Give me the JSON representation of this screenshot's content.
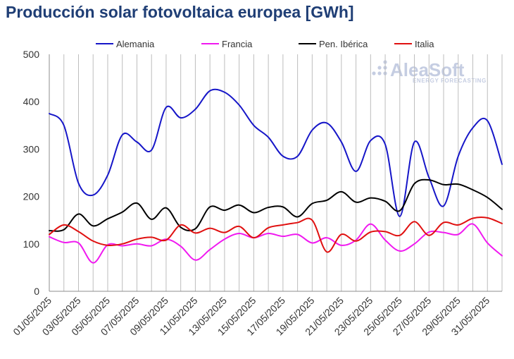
{
  "chart_data": {
    "type": "line",
    "title": "Producción solar fotovoltaica europea [GWh]",
    "xlabel": "",
    "ylabel": "",
    "ylim": [
      0,
      500
    ],
    "yticks": [
      0,
      100,
      200,
      300,
      400,
      500
    ],
    "x_start": "01/05/2025",
    "x": [
      "01/05/2025",
      "02/05/2025",
      "03/05/2025",
      "04/05/2025",
      "05/05/2025",
      "06/05/2025",
      "07/05/2025",
      "08/05/2025",
      "09/05/2025",
      "10/05/2025",
      "11/05/2025",
      "12/05/2025",
      "13/05/2025",
      "14/05/2025",
      "15/05/2025",
      "16/05/2025",
      "17/05/2025",
      "18/05/2025",
      "19/05/2025",
      "20/05/2025",
      "21/05/2025",
      "22/05/2025",
      "23/05/2025",
      "24/05/2025",
      "25/05/2025",
      "26/05/2025",
      "27/05/2025",
      "28/05/2025",
      "29/05/2025",
      "30/05/2025",
      "31/05/2025",
      "01/06/2025"
    ],
    "xtick_labels": [
      "01/05/2025",
      "03/05/2025",
      "05/05/2025",
      "07/05/2025",
      "09/05/2025",
      "11/05/2025",
      "13/05/2025",
      "15/05/2025",
      "17/05/2025",
      "19/05/2025",
      "21/05/2025",
      "23/05/2025",
      "25/05/2025",
      "27/05/2025",
      "29/05/2025",
      "31/05/2025"
    ],
    "grid": "vertical",
    "legend_position": "top",
    "series": [
      {
        "name": "Alemania",
        "color": "#1616c8",
        "values": [
          375,
          350,
          228,
          203,
          245,
          330,
          315,
          298,
          388,
          366,
          384,
          423,
          420,
          393,
          350,
          325,
          285,
          285,
          340,
          355,
          315,
          253,
          318,
          310,
          158,
          315,
          240,
          180,
          285,
          345,
          360,
          268
        ]
      },
      {
        "name": "Francia",
        "color": "#f019f0",
        "values": [
          115,
          103,
          102,
          60,
          98,
          96,
          100,
          96,
          110,
          95,
          66,
          88,
          110,
          122,
          113,
          122,
          116,
          120,
          102,
          113,
          97,
          108,
          142,
          108,
          85,
          100,
          125,
          124,
          120,
          142,
          102,
          75
        ]
      },
      {
        "name": "Pen. Ibérica",
        "color": "#000000",
        "values": [
          128,
          130,
          163,
          138,
          153,
          167,
          186,
          152,
          176,
          135,
          132,
          178,
          171,
          182,
          166,
          177,
          178,
          157,
          185,
          192,
          210,
          188,
          197,
          190,
          170,
          227,
          235,
          225,
          226,
          214,
          198,
          173
        ]
      },
      {
        "name": "Italia",
        "color": "#e01010",
        "values": [
          120,
          140,
          126,
          106,
          97,
          100,
          110,
          114,
          108,
          140,
          123,
          133,
          124,
          137,
          113,
          134,
          140,
          145,
          150,
          83,
          120,
          106,
          125,
          126,
          118,
          147,
          118,
          145,
          140,
          154,
          155,
          143
        ]
      }
    ]
  },
  "watermark": {
    "logo": "AleaSoft",
    "tagline": "ENERGY FORECASTING"
  }
}
